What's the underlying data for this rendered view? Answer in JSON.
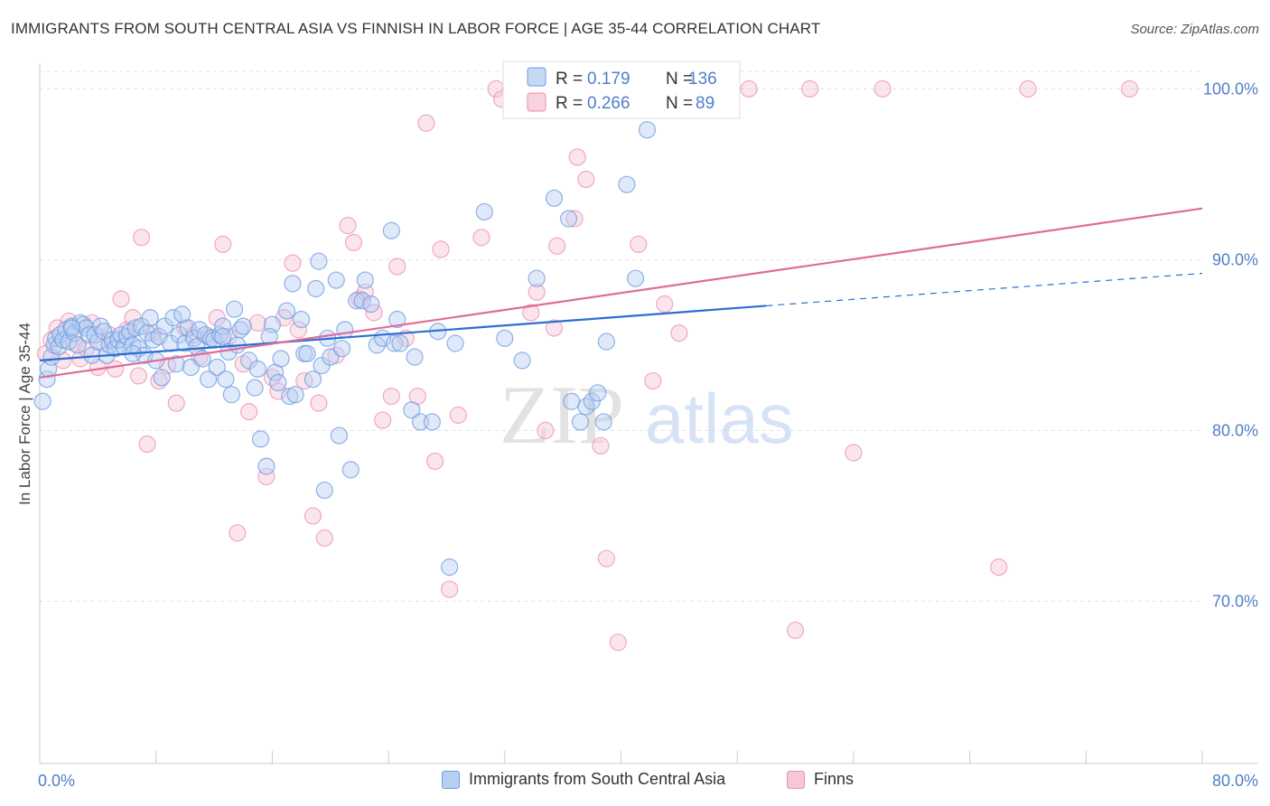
{
  "title": "IMMIGRANTS FROM SOUTH CENTRAL ASIA VS FINNISH IN LABOR FORCE | AGE 35-44 CORRELATION CHART",
  "source": "Source: ZipAtlas.com",
  "watermark": {
    "zip": "ZIP",
    "atlas": "atlas"
  },
  "colors": {
    "blue": "#6b9be0",
    "blue_fill": "#b7cff1",
    "blue_line": "#2a6fd1",
    "pink": "#ec8fb0",
    "pink_fill": "#f7c6d7",
    "pink_line": "#e06b99",
    "tick_label": "#4f7fc9",
    "grid": "#e1e1e1"
  },
  "legend_box": {
    "rows": [
      {
        "series": "blue",
        "r_label": "R = ",
        "r_value": "0.179",
        "n_label": "N = ",
        "n_value": "136"
      },
      {
        "series": "pink",
        "r_label": "R = ",
        "r_value": "0.266",
        "n_label": "N = ",
        "n_value": "89"
      }
    ]
  },
  "chart_data": {
    "type": "scatter",
    "title": "IMMIGRANTS FROM SOUTH CENTRAL ASIA VS FINNISH IN LABOR FORCE | AGE 35-44 CORRELATION CHART",
    "xlabel": "",
    "ylabel": "In Labor Force | Age 35-44",
    "xlim": [
      0,
      80
    ],
    "ylim": [
      60.5,
      101.5
    ],
    "x_tick_labels": [
      {
        "value": 0,
        "label": "0.0%"
      },
      {
        "value": 80,
        "label": "80.0%"
      }
    ],
    "y_tick_labels": [
      {
        "value": 100,
        "label": "100.0%"
      },
      {
        "value": 90,
        "label": "90.0%"
      },
      {
        "value": 80,
        "label": "80.0%"
      },
      {
        "value": 70,
        "label": "70.0%"
      }
    ],
    "grid": "horizontal dashed",
    "legend_placement": "bottom-center",
    "series": [
      {
        "name": "Immigrants from South Central Asia",
        "color": "#6b9be0",
        "R": 0.179,
        "N": 136,
        "trend": {
          "x0": 0,
          "y0": 84.1,
          "x1": 50,
          "y1": 87.3,
          "dash_to_x": 80,
          "dash_to_y": 89.2
        },
        "points": [
          [
            0.2,
            81.7
          ],
          [
            0.5,
            83.0
          ],
          [
            0.6,
            83.6
          ],
          [
            0.8,
            84.3
          ],
          [
            1.0,
            85.0
          ],
          [
            1.1,
            85.4
          ],
          [
            1.3,
            84.9
          ],
          [
            1.4,
            85.6
          ],
          [
            1.6,
            85.3
          ],
          [
            1.8,
            85.9
          ],
          [
            2.0,
            85.2
          ],
          [
            2.2,
            86.1
          ],
          [
            2.4,
            85.7
          ],
          [
            2.6,
            85.0
          ],
          [
            2.8,
            86.3
          ],
          [
            3.0,
            86.2
          ],
          [
            3.2,
            86.0
          ],
          [
            3.4,
            85.6
          ],
          [
            3.6,
            84.4
          ],
          [
            3.8,
            85.6
          ],
          [
            4.0,
            85.2
          ],
          [
            4.2,
            86.1
          ],
          [
            4.4,
            85.8
          ],
          [
            4.6,
            84.4
          ],
          [
            4.8,
            85.0
          ],
          [
            5.0,
            85.3
          ],
          [
            5.2,
            84.8
          ],
          [
            5.4,
            85.3
          ],
          [
            5.6,
            85.6
          ],
          [
            5.8,
            84.9
          ],
          [
            6.0,
            85.5
          ],
          [
            6.2,
            85.8
          ],
          [
            6.4,
            85.0
          ],
          [
            6.6,
            86.0
          ],
          [
            6.8,
            84.8
          ],
          [
            7.0,
            86.1
          ],
          [
            7.2,
            84.4
          ],
          [
            7.4,
            85.7
          ],
          [
            7.6,
            86.6
          ],
          [
            7.8,
            85.3
          ],
          [
            8.0,
            84.1
          ],
          [
            8.2,
            85.5
          ],
          [
            8.4,
            83.1
          ],
          [
            8.6,
            86.1
          ],
          [
            9.0,
            85.1
          ],
          [
            9.2,
            86.6
          ],
          [
            9.4,
            83.9
          ],
          [
            9.6,
            85.6
          ],
          [
            10.0,
            85.1
          ],
          [
            10.2,
            86.0
          ],
          [
            10.4,
            83.7
          ],
          [
            10.6,
            85.4
          ],
          [
            10.8,
            84.9
          ],
          [
            11.0,
            85.9
          ],
          [
            11.2,
            84.2
          ],
          [
            11.4,
            85.6
          ],
          [
            11.6,
            83.0
          ],
          [
            11.8,
            85.4
          ],
          [
            12.0,
            85.3
          ],
          [
            12.2,
            83.7
          ],
          [
            12.4,
            85.6
          ],
          [
            12.6,
            86.1
          ],
          [
            12.8,
            83.0
          ],
          [
            13.0,
            84.6
          ],
          [
            13.2,
            82.1
          ],
          [
            13.4,
            87.1
          ],
          [
            13.6,
            85.0
          ],
          [
            13.8,
            85.9
          ],
          [
            14.0,
            86.1
          ],
          [
            14.4,
            84.1
          ],
          [
            14.8,
            82.5
          ],
          [
            15.0,
            83.6
          ],
          [
            15.2,
            79.5
          ],
          [
            15.6,
            77.9
          ],
          [
            16.0,
            86.2
          ],
          [
            16.2,
            83.4
          ],
          [
            16.4,
            82.8
          ],
          [
            17.0,
            87.0
          ],
          [
            17.2,
            82.0
          ],
          [
            17.4,
            88.6
          ],
          [
            17.6,
            82.1
          ],
          [
            18.0,
            86.5
          ],
          [
            18.2,
            84.5
          ],
          [
            18.4,
            84.5
          ],
          [
            18.8,
            83.0
          ],
          [
            19.0,
            88.3
          ],
          [
            19.2,
            89.9
          ],
          [
            19.4,
            83.8
          ],
          [
            19.6,
            76.5
          ],
          [
            20.0,
            84.3
          ],
          [
            20.4,
            88.8
          ],
          [
            20.6,
            79.7
          ],
          [
            21.0,
            85.9
          ],
          [
            21.4,
            77.7
          ],
          [
            21.8,
            87.6
          ],
          [
            22.2,
            87.6
          ],
          [
            22.4,
            88.8
          ],
          [
            22.8,
            87.4
          ],
          [
            23.2,
            85.0
          ],
          [
            23.6,
            85.4
          ],
          [
            24.2,
            91.7
          ],
          [
            24.4,
            85.1
          ],
          [
            24.6,
            86.5
          ],
          [
            25.6,
            81.2
          ],
          [
            25.8,
            84.3
          ],
          [
            26.2,
            80.5
          ],
          [
            27.0,
            80.5
          ],
          [
            28.2,
            72.0
          ],
          [
            28.6,
            85.1
          ],
          [
            30.6,
            92.8
          ],
          [
            32.0,
            85.4
          ],
          [
            33.2,
            84.1
          ],
          [
            34.2,
            88.9
          ],
          [
            35.4,
            93.6
          ],
          [
            36.4,
            92.4
          ],
          [
            36.6,
            81.7
          ],
          [
            37.2,
            80.5
          ],
          [
            37.6,
            81.4
          ],
          [
            38.0,
            81.7
          ],
          [
            38.4,
            82.2
          ],
          [
            38.8,
            80.5
          ],
          [
            39.0,
            85.2
          ],
          [
            40.4,
            94.4
          ],
          [
            41.0,
            88.9
          ],
          [
            41.8,
            97.6
          ],
          [
            33.0,
            100.0
          ],
          [
            33.4,
            100.0
          ],
          [
            34.0,
            100.0
          ],
          [
            20.8,
            84.8
          ],
          [
            16.6,
            84.2
          ],
          [
            2.2,
            86.0
          ],
          [
            9.8,
            86.8
          ],
          [
            27.4,
            85.8
          ],
          [
            15.8,
            85.5
          ],
          [
            6.4,
            84.5
          ],
          [
            12.6,
            85.5
          ],
          [
            24.8,
            85.1
          ],
          [
            19.8,
            85.4
          ]
        ]
      },
      {
        "name": "Finns",
        "color": "#ec8fb0",
        "R": 0.266,
        "N": 89,
        "trend": {
          "x0": 0,
          "y0": 83.1,
          "x1": 80,
          "y1": 93.0
        },
        "points": [
          [
            0.4,
            84.5
          ],
          [
            0.8,
            85.3
          ],
          [
            1.2,
            86.0
          ],
          [
            1.6,
            84.1
          ],
          [
            2.0,
            86.4
          ],
          [
            2.4,
            85.1
          ],
          [
            2.8,
            84.2
          ],
          [
            3.2,
            84.8
          ],
          [
            3.6,
            86.3
          ],
          [
            4.0,
            83.7
          ],
          [
            4.4,
            85.1
          ],
          [
            4.8,
            85.6
          ],
          [
            5.2,
            83.6
          ],
          [
            5.6,
            87.7
          ],
          [
            6.0,
            85.9
          ],
          [
            6.4,
            86.6
          ],
          [
            6.8,
            83.2
          ],
          [
            7.0,
            91.3
          ],
          [
            7.4,
            79.2
          ],
          [
            7.8,
            85.7
          ],
          [
            8.2,
            82.9
          ],
          [
            8.8,
            83.8
          ],
          [
            9.4,
            81.6
          ],
          [
            10.0,
            86.0
          ],
          [
            10.6,
            85.6
          ],
          [
            11.0,
            84.3
          ],
          [
            11.6,
            85.5
          ],
          [
            12.2,
            86.6
          ],
          [
            12.6,
            90.9
          ],
          [
            13.0,
            85.5
          ],
          [
            13.6,
            74.0
          ],
          [
            14.0,
            83.9
          ],
          [
            14.4,
            81.1
          ],
          [
            15.0,
            86.3
          ],
          [
            15.6,
            77.3
          ],
          [
            16.0,
            83.1
          ],
          [
            16.4,
            82.3
          ],
          [
            16.8,
            86.6
          ],
          [
            17.4,
            89.8
          ],
          [
            17.8,
            85.9
          ],
          [
            18.2,
            82.9
          ],
          [
            18.8,
            75.0
          ],
          [
            19.2,
            81.6
          ],
          [
            19.6,
            73.7
          ],
          [
            20.4,
            84.4
          ],
          [
            21.2,
            92.0
          ],
          [
            21.6,
            91.0
          ],
          [
            22.0,
            87.7
          ],
          [
            22.4,
            88.1
          ],
          [
            23.0,
            86.9
          ],
          [
            23.6,
            80.6
          ],
          [
            24.2,
            82.0
          ],
          [
            24.6,
            89.6
          ],
          [
            25.2,
            85.4
          ],
          [
            26.0,
            82.0
          ],
          [
            26.6,
            98.0
          ],
          [
            27.2,
            78.2
          ],
          [
            27.6,
            90.6
          ],
          [
            28.2,
            70.7
          ],
          [
            28.8,
            80.9
          ],
          [
            30.4,
            91.3
          ],
          [
            31.4,
            100.0
          ],
          [
            31.8,
            99.4
          ],
          [
            32.4,
            100.0
          ],
          [
            33.2,
            100.0
          ],
          [
            33.8,
            86.9
          ],
          [
            34.2,
            88.1
          ],
          [
            34.8,
            80.0
          ],
          [
            35.4,
            86.0
          ],
          [
            35.6,
            90.8
          ],
          [
            36.8,
            92.4
          ],
          [
            37.0,
            96.0
          ],
          [
            37.6,
            94.7
          ],
          [
            38.6,
            79.1
          ],
          [
            39.0,
            72.5
          ],
          [
            39.8,
            67.6
          ],
          [
            41.2,
            90.9
          ],
          [
            42.2,
            82.9
          ],
          [
            43.0,
            87.4
          ],
          [
            44.0,
            85.7
          ],
          [
            46.6,
            100.0
          ],
          [
            48.8,
            100.0
          ],
          [
            52.0,
            68.3
          ],
          [
            53.0,
            100.0
          ],
          [
            56.0,
            78.7
          ],
          [
            58.0,
            100.0
          ],
          [
            66.0,
            72.0
          ],
          [
            68.0,
            100.0
          ],
          [
            75.0,
            100.0
          ]
        ]
      }
    ]
  },
  "bottom_legend": [
    {
      "series": "blue",
      "label": "Immigrants from South Central Asia"
    },
    {
      "series": "pink",
      "label": "Finns"
    }
  ]
}
